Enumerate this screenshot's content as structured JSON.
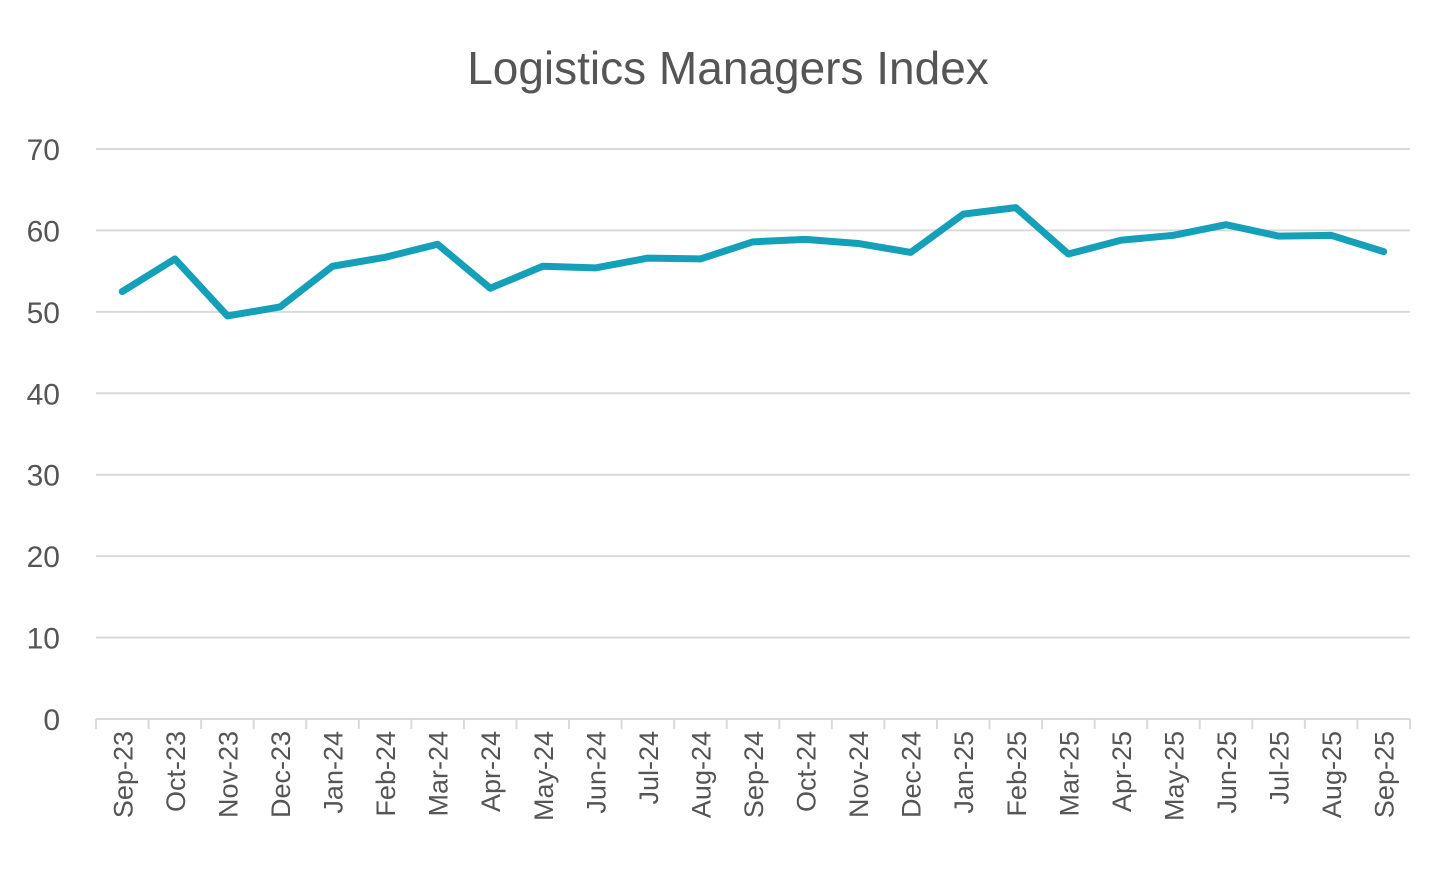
{
  "chart_data": {
    "type": "line",
    "title": "Logistics Managers Index",
    "xlabel": "",
    "ylabel": "",
    "ylim": [
      0,
      70
    ],
    "yticks": [
      0,
      10,
      20,
      30,
      40,
      50,
      60,
      70
    ],
    "grid": true,
    "legend": "none",
    "categories": [
      "Sep-23",
      "Oct-23",
      "Nov-23",
      "Dec-23",
      "Jan-24",
      "Feb-24",
      "Mar-24",
      "Apr-24",
      "May-24",
      "Jun-24",
      "Jul-24",
      "Aug-24",
      "Sep-24",
      "Oct-24",
      "Nov-24",
      "Dec-24",
      "Jan-25",
      "Feb-25",
      "Mar-25",
      "Apr-25",
      "May-25",
      "Jun-25",
      "Jul-25",
      "Aug-25",
      "Sep-25"
    ],
    "series": [
      {
        "color": "#14a0b8",
        "values": [
          52.5,
          56.5,
          49.5,
          50.6,
          55.6,
          56.7,
          58.3,
          52.9,
          55.6,
          55.4,
          56.6,
          56.5,
          58.6,
          58.9,
          58.4,
          57.3,
          62.0,
          62.8,
          57.1,
          58.8,
          59.4,
          60.7,
          59.3,
          59.4,
          57.4
        ]
      }
    ]
  }
}
